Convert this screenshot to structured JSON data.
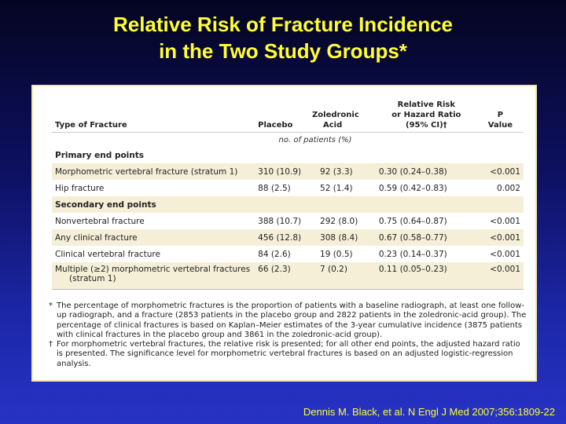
{
  "slide": {
    "title_line1": "Relative Risk of Fracture Incidence",
    "title_line2": "in the Two Study Groups*",
    "credit": "Dennis M. Black, et al. N Engl J Med 2007;356:1809-22"
  },
  "table": {
    "headers": {
      "type": "Type of Fracture",
      "placebo": "Placebo",
      "zoledronic_line1": "Zoledronic",
      "zoledronic_line2": "Acid",
      "rr_line1": "Relative Risk",
      "rr_line2": "or Hazard Ratio",
      "rr_line3": "(95% CI)†",
      "p_line1": "P",
      "p_line2": "Value"
    },
    "units": "no. of patients (%)",
    "primary_label": "Primary end points",
    "primary_rows": [
      {
        "type": "Morphometric vertebral fracture (stratum 1)",
        "placebo": "310 (10.9)",
        "zoledronic": "92 (3.3)",
        "rr": "0.30 (0.24–0.38)",
        "p": "<0.001"
      },
      {
        "type": "Hip fracture",
        "placebo": "88 (2.5)",
        "zoledronic": "52 (1.4)",
        "rr": "0.59 (0.42–0.83)",
        "p": "0.002"
      }
    ],
    "secondary_label": "Secondary end points",
    "secondary_rows": [
      {
        "type": "Nonvertebral fracture",
        "placebo": "388 (10.7)",
        "zoledronic": "292 (8.0)",
        "rr": "0.75 (0.64–0.87)",
        "p": "<0.001"
      },
      {
        "type": "Any clinical fracture",
        "placebo": "456 (12.8)",
        "zoledronic": "308 (8.4)",
        "rr": "0.67 (0.58–0.77)",
        "p": "<0.001"
      },
      {
        "type": "Clinical vertebral fracture",
        "placebo": "84 (2.6)",
        "zoledronic": "19 (0.5)",
        "rr": "0.23 (0.14–0.37)",
        "p": "<0.001"
      },
      {
        "type_line1": "Multiple (≥2) morphometric vertebral fractures",
        "type_line2": "(stratum 1)",
        "placebo": "66 (2.3)",
        "zoledronic": "7 (0.2)",
        "rr": "0.11 (0.05–0.23)",
        "p": "<0.001"
      }
    ]
  },
  "footnotes": {
    "star_mark": "*",
    "star_text": "The percentage of morphometric fractures is the proportion of patients with a baseline radiograph, at least one follow-up radiograph, and a fracture (2853 patients in the placebo group and 2822 patients in the zoledronic-acid group). The percentage of clinical fractures is based on Kaplan–Meier estimates of the 3-year cumulative incidence (3875 patients with clinical fractures in the placebo group and 3861 in the zoledronic-acid group).",
    "dagger_mark": "†",
    "dagger_text": "For morphometric vertebral fractures, the relative risk is presented; for all other end points, the adjusted hazard ratio is presented. The significance level for morphometric vertebral fractures is based on an adjusted logistic-regression analysis."
  }
}
